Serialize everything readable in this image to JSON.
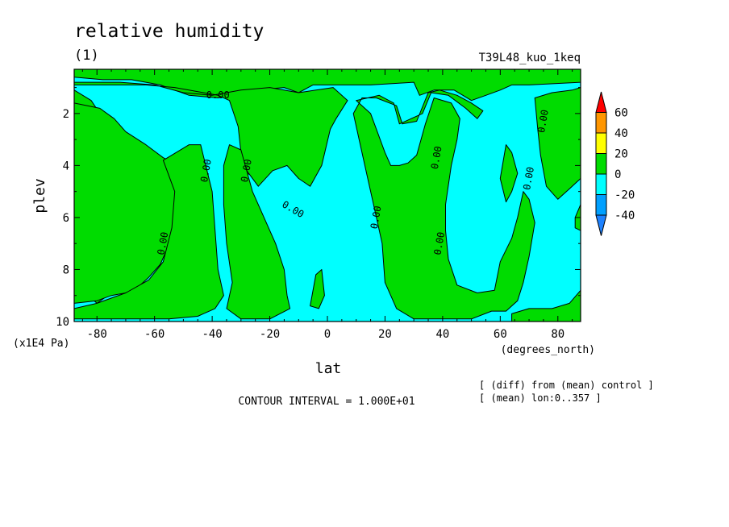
{
  "chart_data": {
    "type": "heatmap",
    "title": "relative humidity",
    "subtitle": "(1)",
    "run_label": "T39L48_kuo_1keq",
    "xlabel": "lat",
    "x_units": "(degrees_north)",
    "ylabel": "plev",
    "y_units": "(x1E4 Pa)",
    "xlim": [
      -87.9,
      87.9
    ],
    "ylim": [
      10,
      0.3
    ],
    "y_inverted": true,
    "x_ticks": [
      -80,
      -60,
      -40,
      -20,
      0,
      20,
      40,
      60,
      80
    ],
    "x_tick_labels": [
      "-80",
      "-60",
      "-40",
      "-20",
      "0",
      "20",
      "40",
      "60",
      "80"
    ],
    "y_ticks": [
      2,
      4,
      6,
      8,
      10
    ],
    "y_tick_labels": [
      "2",
      "4",
      "6",
      "8",
      "10"
    ],
    "contour_interval_text": "CONTOUR INTERVAL = 1.000E+01",
    "notes": [
      "[ (diff) from (mean) control ]",
      "[ (mean) lon:0..357 ]"
    ],
    "contour_labels": [
      {
        "lat": -38,
        "plev": 1.3,
        "text": "0.00"
      },
      {
        "lat": -42,
        "plev": 4.2,
        "text": "0.00"
      },
      {
        "lat": -28,
        "plev": 4.2,
        "text": "0.00"
      },
      {
        "lat": -12,
        "plev": 5.7,
        "text": "0.00"
      },
      {
        "lat": -57,
        "plev": 7.0,
        "text": "0.00"
      },
      {
        "lat": 17,
        "plev": 6.0,
        "text": "0.00"
      },
      {
        "lat": 38,
        "plev": 3.7,
        "text": "0.00"
      },
      {
        "lat": 39,
        "plev": 7.0,
        "text": "0.00"
      },
      {
        "lat": 75,
        "plev": 2.3,
        "text": "0.00"
      },
      {
        "lat": 70,
        "plev": 4.5,
        "text": "0.00"
      }
    ],
    "colorbar": {
      "levels": [
        -40,
        -20,
        0,
        20,
        40,
        60
      ],
      "labels": [
        "-40",
        "-20",
        "0",
        "20",
        "40",
        "60"
      ],
      "bins": [
        {
          "range": "< -40",
          "color": "#1e82ff"
        },
        {
          "range": "-40..-20",
          "color": "#00a0ff"
        },
        {
          "range": "-20..0",
          "color": "#00ffff"
        },
        {
          "range": "0..20",
          "color": "#00dc00"
        },
        {
          "range": "20..40",
          "color": "#ffff00"
        },
        {
          "range": "40..60",
          "color": "#ff9600"
        },
        {
          "range": "> 60",
          "color": "#ff0000"
        }
      ]
    },
    "fill_colors": {
      "negative": "#00ffff",
      "positive": "#00dc00"
    },
    "positive_regions": [
      [
        [
          -87.9,
          0.3
        ],
        [
          87.9,
          0.3
        ],
        [
          87.9,
          0.8
        ],
        [
          70,
          0.9
        ],
        [
          64,
          0.9
        ],
        [
          60,
          1.1
        ],
        [
          55,
          1.3
        ],
        [
          50,
          1.5
        ],
        [
          44,
          1.1
        ],
        [
          37,
          1.1
        ],
        [
          32,
          1.3
        ],
        [
          30,
          0.8
        ],
        [
          15,
          0.9
        ],
        [
          5,
          0.9
        ],
        [
          -5,
          0.9
        ],
        [
          -10,
          1.2
        ],
        [
          -15,
          1.0
        ],
        [
          -25,
          1.1
        ],
        [
          -38,
          1.4
        ],
        [
          -48,
          1.3
        ],
        [
          -58,
          0.9
        ],
        [
          -68,
          0.7
        ],
        [
          -78,
          0.7
        ],
        [
          -87.9,
          0.6
        ]
      ],
      [
        [
          -87.9,
          0.9
        ],
        [
          -76,
          0.9
        ],
        [
          -63,
          0.9
        ],
        [
          -53,
          1.0
        ],
        [
          -43,
          1.2
        ],
        [
          -38,
          1.3
        ],
        [
          -34,
          1.5
        ],
        [
          -31,
          2.5
        ],
        [
          -30,
          3.5
        ],
        [
          -28,
          4.2
        ],
        [
          -24,
          4.8
        ],
        [
          -19,
          4.2
        ],
        [
          -14,
          4.0
        ],
        [
          -10,
          4.5
        ],
        [
          -6,
          4.8
        ],
        [
          -2,
          4.0
        ],
        [
          1,
          2.6
        ],
        [
          3,
          2.2
        ],
        [
          7,
          1.5
        ],
        [
          2,
          1.0
        ],
        [
          -10,
          1.2
        ],
        [
          -20,
          1.0
        ],
        [
          -30,
          1.1
        ],
        [
          -40,
          1.3
        ],
        [
          -50,
          1.2
        ],
        [
          -60,
          0.9
        ],
        [
          -72,
          0.8
        ],
        [
          -87.9,
          0.8
        ]
      ],
      [
        [
          -87.9,
          1.1
        ],
        [
          -82,
          1.5
        ],
        [
          -76,
          2.5
        ],
        [
          -74,
          3.6
        ],
        [
          -66,
          3.5
        ],
        [
          -63,
          4.0
        ],
        [
          -58,
          4.6
        ],
        [
          -56,
          5.5
        ],
        [
          -55,
          6.2
        ],
        [
          -57,
          7.2
        ],
        [
          -62,
          7.6
        ],
        [
          -70,
          8.5
        ],
        [
          -80,
          9.3
        ],
        [
          -87.9,
          8.5
        ]
      ],
      [
        [
          -87.9,
          9.3
        ],
        [
          -80,
          9.2
        ],
        [
          -75,
          9.0
        ],
        [
          -70,
          8.9
        ],
        [
          -66,
          8.7
        ],
        [
          -62,
          8.3
        ],
        [
          -58,
          7.8
        ],
        [
          -54,
          6.8
        ],
        [
          -52,
          6.0
        ],
        [
          -50,
          5.0
        ],
        [
          -51,
          4.0
        ],
        [
          -57,
          3.7
        ],
        [
          -63,
          3.2
        ],
        [
          -70,
          2.7
        ],
        [
          -74,
          2.2
        ],
        [
          -79,
          1.8
        ],
        [
          -87.9,
          1.6
        ]
      ],
      [
        [
          -57,
          3.8
        ],
        [
          -48,
          3.2
        ],
        [
          -44,
          3.2
        ],
        [
          -40,
          5.0
        ],
        [
          -39,
          6.5
        ],
        [
          -38,
          8.0
        ],
        [
          -36,
          9.0
        ],
        [
          -39,
          9.5
        ],
        [
          -45,
          9.8
        ],
        [
          -55,
          9.9
        ],
        [
          -65,
          9.9
        ],
        [
          -75,
          9.9
        ],
        [
          -87.9,
          9.9
        ],
        [
          -87.9,
          9.5
        ],
        [
          -80,
          9.3
        ],
        [
          -70,
          8.9
        ],
        [
          -62,
          8.4
        ],
        [
          -57,
          7.7
        ],
        [
          -54,
          6.4
        ],
        [
          -53,
          5.0
        ]
      ],
      [
        [
          -36,
          4.0
        ],
        [
          -34,
          3.2
        ],
        [
          -30,
          3.4
        ],
        [
          -26,
          5.0
        ],
        [
          -22,
          6.0
        ],
        [
          -18,
          7.0
        ],
        [
          -15,
          8.0
        ],
        [
          -14,
          9.0
        ],
        [
          -13,
          9.5
        ],
        [
          -20,
          9.9
        ],
        [
          -30,
          9.9
        ],
        [
          -35,
          9.5
        ],
        [
          -33,
          8.5
        ],
        [
          -35,
          7.0
        ],
        [
          -36,
          5.5
        ]
      ],
      [
        [
          -6,
          9.4
        ],
        [
          -4,
          8.2
        ],
        [
          -2,
          8.0
        ],
        [
          -1,
          9.0
        ],
        [
          -3,
          9.5
        ]
      ],
      [
        [
          10,
          1.5
        ],
        [
          18,
          1.3
        ],
        [
          23,
          1.6
        ],
        [
          25,
          2.4
        ],
        [
          33,
          2.0
        ],
        [
          36,
          1.2
        ],
        [
          42,
          1.3
        ],
        [
          48,
          1.8
        ],
        [
          52,
          2.2
        ],
        [
          54,
          1.9
        ],
        [
          50,
          1.6
        ],
        [
          45,
          1.3
        ],
        [
          39,
          1.1
        ],
        [
          35,
          1.2
        ],
        [
          31,
          2.3
        ],
        [
          26,
          2.4
        ],
        [
          24,
          1.7
        ],
        [
          17,
          1.4
        ],
        [
          12,
          1.4
        ],
        [
          9,
          2.0
        ],
        [
          11,
          3.0
        ],
        [
          14,
          4.5
        ],
        [
          16,
          5.5
        ],
        [
          19,
          7.0
        ],
        [
          20,
          8.5
        ],
        [
          24,
          9.5
        ],
        [
          30,
          9.9
        ],
        [
          40,
          9.9
        ],
        [
          50,
          9.9
        ],
        [
          57,
          9.6
        ],
        [
          62,
          9.6
        ],
        [
          66,
          9.2
        ],
        [
          68,
          8.5
        ],
        [
          70,
          7.5
        ],
        [
          72,
          6.2
        ],
        [
          70,
          5.3
        ],
        [
          68,
          5.0
        ],
        [
          66,
          6.0
        ],
        [
          64,
          6.8
        ],
        [
          60,
          7.7
        ],
        [
          58,
          8.8
        ],
        [
          52,
          8.9
        ],
        [
          45,
          8.6
        ],
        [
          42,
          7.6
        ],
        [
          41,
          6.5
        ],
        [
          41,
          5.5
        ],
        [
          43,
          4.0
        ],
        [
          45,
          3.0
        ],
        [
          46,
          2.2
        ],
        [
          43,
          1.6
        ],
        [
          37,
          1.4
        ],
        [
          34,
          2.4
        ],
        [
          31,
          3.6
        ],
        [
          28,
          3.9
        ],
        [
          25,
          4.0
        ],
        [
          22,
          4.0
        ],
        [
          20,
          3.5
        ],
        [
          15,
          2.0
        ]
      ],
      [
        [
          60,
          4.5
        ],
        [
          62,
          3.2
        ],
        [
          64,
          3.5
        ],
        [
          66,
          4.3
        ],
        [
          64,
          5.0
        ],
        [
          62,
          5.4
        ]
      ],
      [
        [
          72,
          1.4
        ],
        [
          78,
          1.2
        ],
        [
          85,
          1.1
        ],
        [
          87.9,
          1.0
        ],
        [
          87.9,
          4.5
        ],
        [
          84,
          4.9
        ],
        [
          80,
          5.3
        ],
        [
          76,
          4.8
        ],
        [
          74,
          3.6
        ],
        [
          73,
          2.6
        ]
      ],
      [
        [
          86,
          6.0
        ],
        [
          87.9,
          5.5
        ],
        [
          87.9,
          6.5
        ],
        [
          86,
          6.4
        ]
      ],
      [
        [
          64,
          9.7
        ],
        [
          70,
          9.5
        ],
        [
          78,
          9.5
        ],
        [
          84,
          9.3
        ],
        [
          87.9,
          8.8
        ],
        [
          87.9,
          10
        ],
        [
          64,
          10
        ]
      ]
    ]
  }
}
